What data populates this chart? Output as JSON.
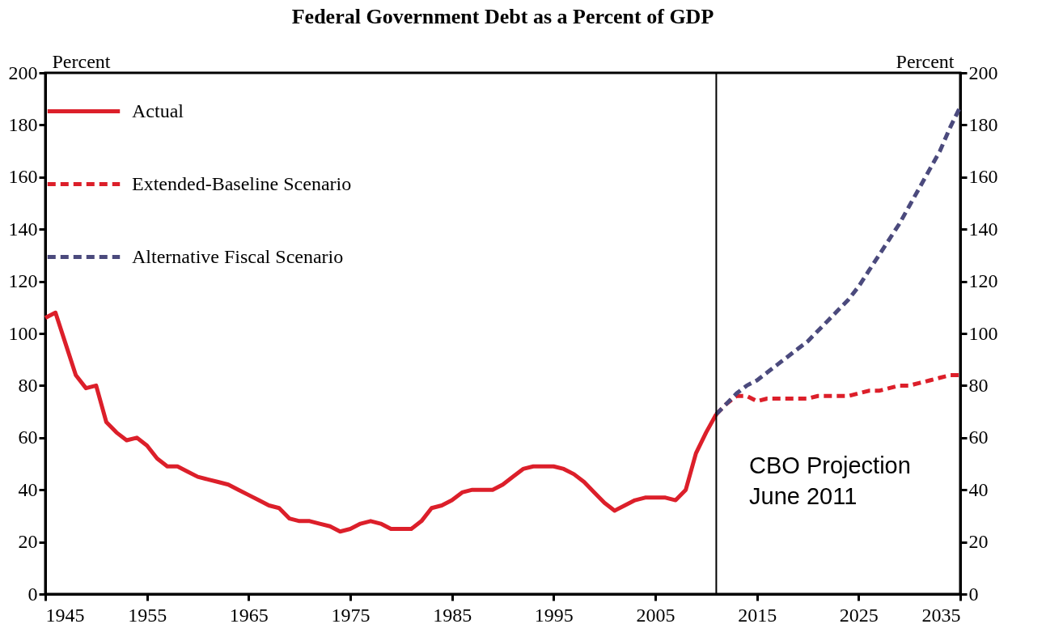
{
  "chart_data": {
    "type": "line",
    "title": "Federal Government Debt as a Percent of GDP",
    "ylabel": "Percent",
    "y2label": "Percent",
    "xlim": [
      1945,
      2035
    ],
    "xticks": [
      1945,
      1955,
      1965,
      1975,
      1985,
      1995,
      2005,
      2015,
      2025,
      2035
    ],
    "ylim": [
      0,
      200
    ],
    "yticks": [
      0,
      20,
      40,
      60,
      80,
      100,
      120,
      140,
      160,
      180,
      200
    ],
    "y2lim": [
      0,
      200
    ],
    "y2ticks": [
      0,
      20,
      40,
      60,
      80,
      100,
      120,
      140,
      160,
      180,
      200
    ],
    "grid": false,
    "legend": "top left",
    "marker": "none",
    "series": [
      {
        "name": "Actual",
        "color": "#dc1f2a",
        "line_style": "solid",
        "x": [
          1945,
          1946,
          1947,
          1948,
          1949,
          1950,
          1951,
          1952,
          1953,
          1954,
          1955,
          1956,
          1957,
          1958,
          1959,
          1960,
          1961,
          1962,
          1963,
          1964,
          1965,
          1966,
          1967,
          1968,
          1969,
          1970,
          1971,
          1972,
          1973,
          1974,
          1975,
          1976,
          1977,
          1978,
          1979,
          1980,
          1981,
          1982,
          1983,
          1984,
          1985,
          1986,
          1987,
          1988,
          1989,
          1990,
          1991,
          1992,
          1993,
          1994,
          1995,
          1996,
          1997,
          1998,
          1999,
          2000,
          2001,
          2002,
          2003,
          2004,
          2005,
          2006,
          2007,
          2008,
          2009,
          2010,
          2011
        ],
        "values": [
          106,
          108,
          96,
          84,
          79,
          80,
          66,
          62,
          59,
          60,
          57,
          52,
          49,
          49,
          47,
          45,
          44,
          43,
          42,
          40,
          38,
          36,
          34,
          33,
          29,
          28,
          28,
          27,
          26,
          24,
          25,
          27,
          28,
          27,
          25,
          25,
          25,
          28,
          33,
          34,
          36,
          39,
          40,
          40,
          40,
          42,
          45,
          48,
          49,
          49,
          49,
          48,
          46,
          43,
          39,
          35,
          32,
          34,
          36,
          37,
          37,
          37,
          36,
          40,
          54,
          62,
          69
        ]
      },
      {
        "name": "Extended-Baseline Scenario",
        "color": "#dc1f2a",
        "line_style": "dashed",
        "x": [
          2011,
          2012,
          2013,
          2014,
          2015,
          2016,
          2017,
          2018,
          2019,
          2020,
          2021,
          2022,
          2023,
          2024,
          2025,
          2026,
          2027,
          2028,
          2029,
          2030,
          2031,
          2032,
          2033,
          2034,
          2035
        ],
        "values": [
          69,
          73,
          76,
          76,
          74,
          75,
          75,
          75,
          75,
          75,
          76,
          76,
          76,
          76,
          77,
          78,
          78,
          79,
          80,
          80,
          81,
          82,
          83,
          84,
          84
        ]
      },
      {
        "name": "Alternative Fiscal Scenario",
        "color": "#4b4a7d",
        "line_style": "dashed",
        "x": [
          2011,
          2012,
          2013,
          2014,
          2015,
          2016,
          2017,
          2018,
          2019,
          2020,
          2021,
          2022,
          2023,
          2024,
          2025,
          2026,
          2027,
          2028,
          2029,
          2030,
          2031,
          2032,
          2033,
          2034,
          2035
        ],
        "values": [
          69,
          73,
          77,
          80,
          82,
          85,
          88,
          91,
          94,
          97,
          101,
          105,
          109,
          113,
          118,
          124,
          130,
          136,
          142,
          149,
          156,
          163,
          170,
          179,
          187
        ]
      }
    ],
    "ref_lines": [
      {
        "axis": "x",
        "value": 2011,
        "color": "#000000"
      }
    ],
    "annotations": [
      "CBO Projection\nJune 2011"
    ]
  }
}
